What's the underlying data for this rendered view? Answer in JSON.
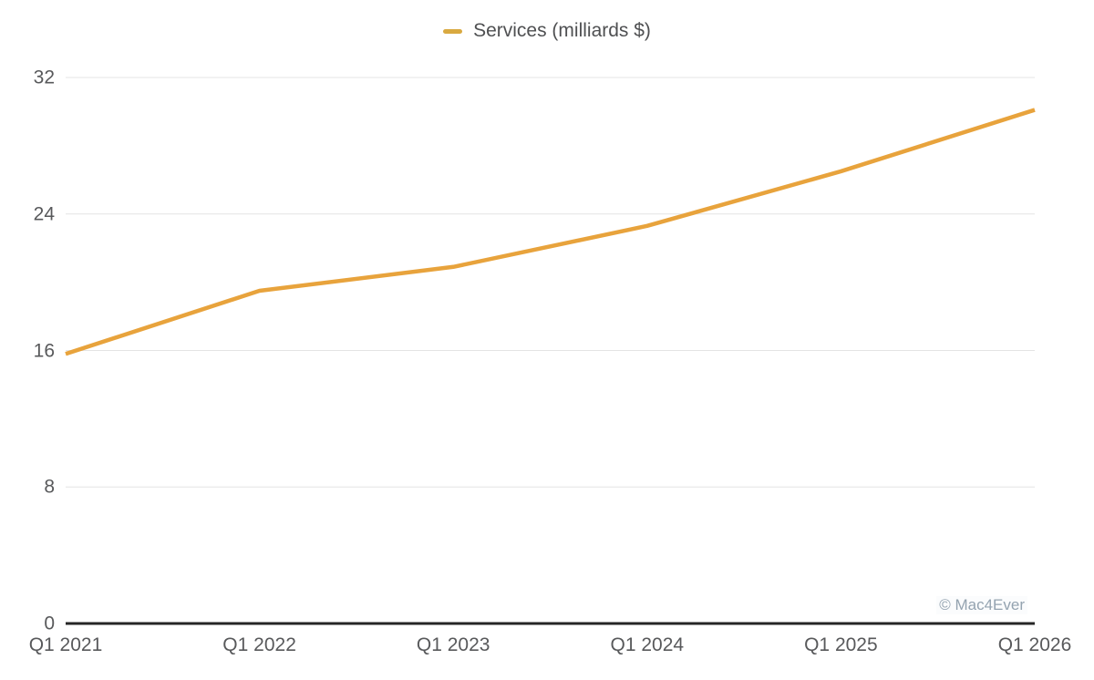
{
  "legend": {
    "label": "Services (milliards $)"
  },
  "watermark": "© Mac4Ever",
  "colors": {
    "line": "#E8A33C",
    "legend_dash": "#D9A940",
    "grid": "#E4E4E4",
    "axis": "#262626",
    "tick_text": "#58595B",
    "watermark": "#94A3B0"
  },
  "chart_data": {
    "type": "line",
    "title": "",
    "xlabel": "",
    "ylabel": "",
    "categories": [
      "Q1 2021",
      "Q1 2022",
      "Q1 2023",
      "Q1 2024",
      "Q1 2025",
      "Q1 2026"
    ],
    "series": [
      {
        "name": "Services (milliards $)",
        "values": [
          15.8,
          19.5,
          20.9,
          23.3,
          26.5,
          30.1
        ],
        "color": "#E8A33C"
      }
    ],
    "ylim": [
      0,
      32
    ],
    "yticks": [
      0,
      8,
      16,
      24,
      32
    ],
    "grid": true,
    "legend_position": "top-center"
  }
}
